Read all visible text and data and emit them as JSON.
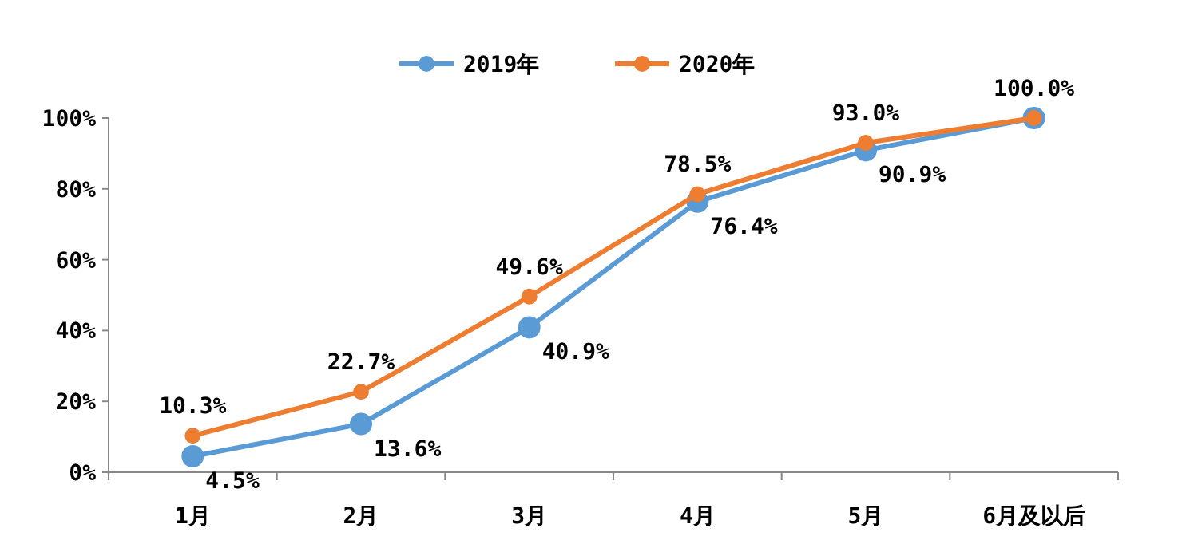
{
  "chart_data": {
    "type": "line",
    "categories": [
      "1月",
      "2月",
      "3月",
      "4月",
      "5月",
      "6月及以后"
    ],
    "ylim": [
      0,
      100
    ],
    "yticks": [
      {
        "value": 0,
        "label": "0%"
      },
      {
        "value": 20,
        "label": "20%"
      },
      {
        "value": 40,
        "label": "40%"
      },
      {
        "value": 60,
        "label": "60%"
      },
      {
        "value": 80,
        "label": "80%"
      },
      {
        "value": 100,
        "label": "100%"
      }
    ],
    "series": [
      {
        "name": "2019年",
        "color": "#5b9bd5",
        "values": [
          4.5,
          13.6,
          40.9,
          76.4,
          90.9,
          100
        ],
        "value_labels": [
          "4.5%",
          "13.6%",
          "40.9%",
          "76.4%",
          "90.9%",
          null
        ]
      },
      {
        "name": "2020年",
        "color": "#ed7d31",
        "values": [
          10.3,
          22.7,
          49.6,
          78.5,
          93.0,
          100
        ],
        "value_labels": [
          "10.3%",
          "22.7%",
          "49.6%",
          "78.5%",
          "93.0%",
          "100.0%"
        ]
      }
    ],
    "marker": "circle",
    "line_style": "solid",
    "legend": "top",
    "grid": false
  }
}
